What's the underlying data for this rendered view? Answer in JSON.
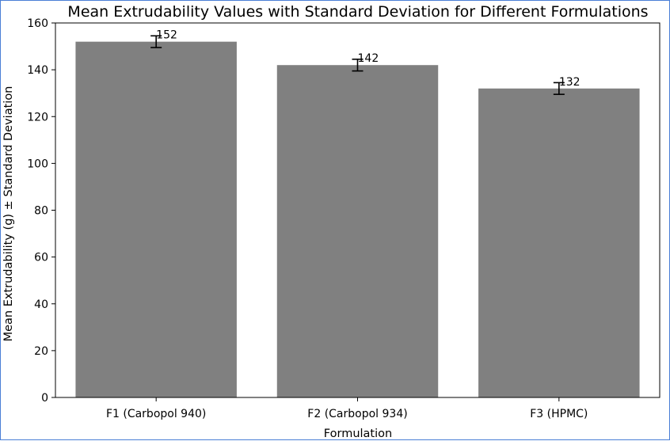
{
  "chart_data": {
    "type": "bar",
    "title": "Mean Extrudability Values with Standard Deviation for Different Formulations",
    "xlabel": "Formulation",
    "ylabel": "Mean Extrudability (g) ± Standard Deviation",
    "categories": [
      "F1 (Carbopol 940)",
      "F2 (Carbopol 934)",
      "F3 (HPMC)"
    ],
    "values": [
      152,
      142,
      132
    ],
    "errors": [
      2.5,
      2.5,
      2.5
    ],
    "data_labels": [
      "152",
      "142",
      "132"
    ],
    "ylim": [
      0,
      160
    ],
    "yticks": [
      0,
      20,
      40,
      60,
      80,
      100,
      120,
      140,
      160
    ],
    "bar_color": "#808080",
    "grid": false,
    "legend": "none"
  }
}
